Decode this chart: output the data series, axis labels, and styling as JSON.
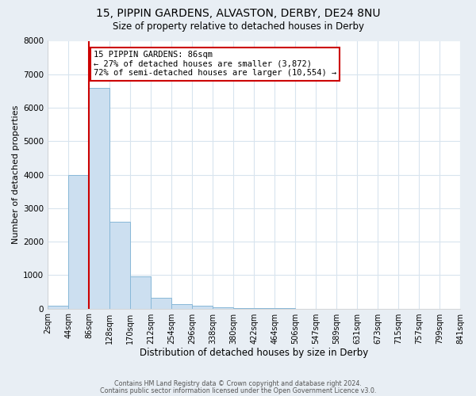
{
  "title": "15, PIPPIN GARDENS, ALVASTON, DERBY, DE24 8NU",
  "subtitle": "Size of property relative to detached houses in Derby",
  "xlabel": "Distribution of detached houses by size in Derby",
  "ylabel": "Number of detached properties",
  "bar_color": "#ccdff0",
  "bar_edge_color": "#88b8d8",
  "red_line_x": 86,
  "annotation_title": "15 PIPPIN GARDENS: 86sqm",
  "annotation_line1": "← 27% of detached houses are smaller (3,872)",
  "annotation_line2": "72% of semi-detached houses are larger (10,554) →",
  "footer1": "Contains HM Land Registry data © Crown copyright and database right 2024.",
  "footer2": "Contains public sector information licensed under the Open Government Licence v3.0.",
  "bin_edges": [
    2,
    44,
    86,
    128,
    170,
    212,
    254,
    296,
    338,
    380,
    422,
    464,
    506,
    547,
    589,
    631,
    673,
    715,
    757,
    799,
    841
  ],
  "bin_heights": [
    75,
    4000,
    6600,
    2600,
    960,
    330,
    130,
    75,
    30,
    12,
    5,
    2,
    1,
    0,
    0,
    0,
    0,
    0,
    0,
    0
  ],
  "ylim": [
    0,
    8000
  ],
  "yticks": [
    0,
    1000,
    2000,
    3000,
    4000,
    5000,
    6000,
    7000,
    8000
  ],
  "fig_bg_color": "#e8eef4",
  "plot_bg_color": "#ffffff",
  "grid_color": "#d8e4ee",
  "annotation_box_edge": "#cc0000",
  "title_fontsize": 10,
  "subtitle_fontsize": 8.5,
  "ylabel_fontsize": 8,
  "xlabel_fontsize": 8.5,
  "tick_fontsize": 7,
  "footer_fontsize": 5.8
}
